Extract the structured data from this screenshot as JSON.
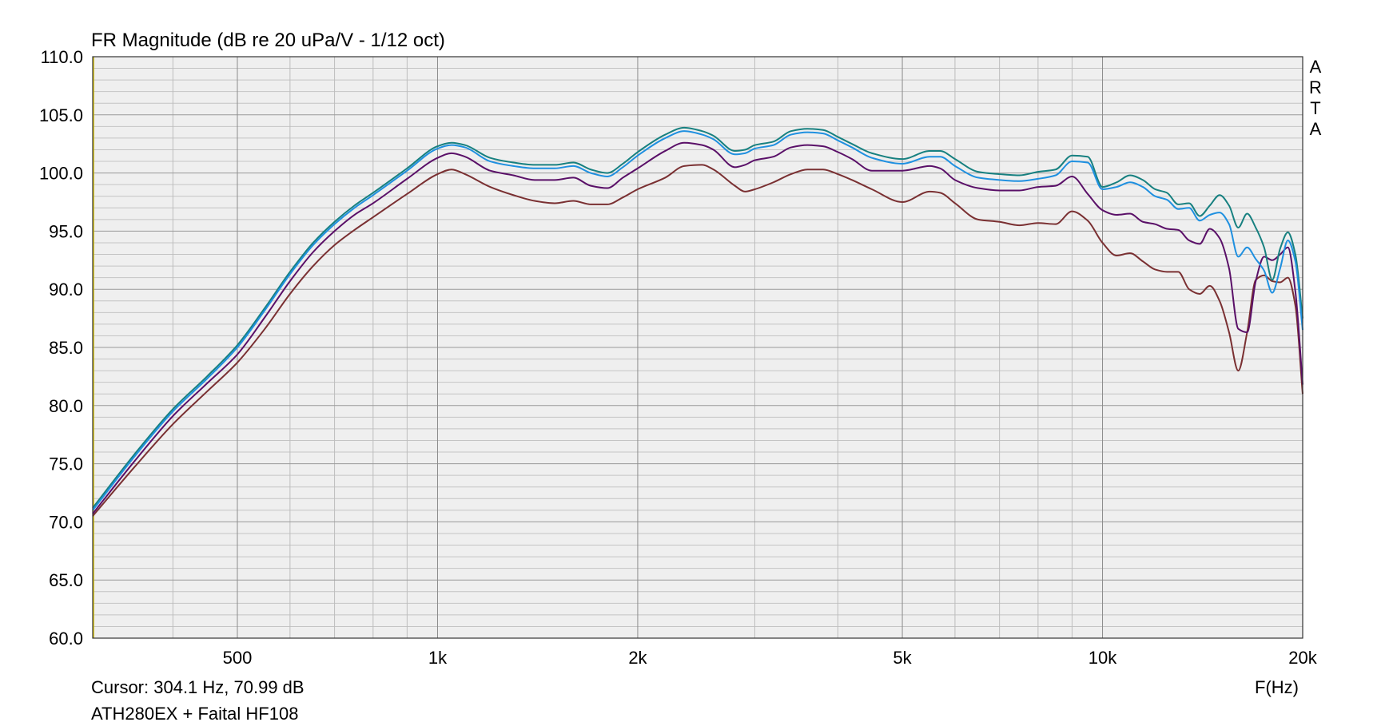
{
  "chart_data": {
    "type": "line",
    "title": "FR Magnitude (dB re 20 uPa/V - 1/12 oct)",
    "xlabel": "F(Hz)",
    "ylabel": "",
    "x_scale": "log",
    "xlim": [
      303,
      20000
    ],
    "ylim": [
      60,
      110
    ],
    "y_ticks": [
      60,
      65,
      70,
      75,
      80,
      85,
      90,
      95,
      100,
      105,
      110
    ],
    "y_tick_labels": [
      "60.0",
      "65.0",
      "70.0",
      "75.0",
      "80.0",
      "85.0",
      "90.0",
      "95.0",
      "100.0",
      "105.0",
      "110.0"
    ],
    "x_ticks": [
      500,
      1000,
      2000,
      5000,
      10000,
      20000
    ],
    "x_tick_labels": [
      "500",
      "1k",
      "2k",
      "5k",
      "10k",
      "20k"
    ],
    "grid": true,
    "watermark": "ARTA",
    "cursor_text": "Cursor: 304.1 Hz, 70.99 dB",
    "footer_note": "ATH280EX + Faital HF108",
    "cursor_marker_x": 304.1,
    "series": [
      {
        "color": "#178080",
        "x": [
          303,
          350,
          400,
          450,
          500,
          550,
          600,
          650,
          700,
          750,
          800,
          900,
          1000,
          1050,
          1100,
          1200,
          1300,
          1400,
          1500,
          1600,
          1700,
          1800,
          1900,
          2000,
          2200,
          2350,
          2500,
          2600,
          2800,
          2900,
          3000,
          3200,
          3400,
          3600,
          3800,
          4000,
          4200,
          4500,
          5000,
          5500,
          5700,
          6000,
          6500,
          7000,
          7500,
          8000,
          8500,
          9000,
          9500,
          10000,
          10500,
          11000,
          11500,
          12000,
          12500,
          13000,
          13500,
          14000,
          14500,
          15000,
          15500,
          16000,
          16500,
          17000,
          17500,
          18000,
          18500,
          19000,
          19500,
          20000
        ],
        "y": [
          71.2,
          75.8,
          79.7,
          82.5,
          85.2,
          88.4,
          91.5,
          94.0,
          95.8,
          97.2,
          98.3,
          100.4,
          102.3,
          102.6,
          102.4,
          101.3,
          100.9,
          100.7,
          100.7,
          100.9,
          100.3,
          100.0,
          100.8,
          101.8,
          103.3,
          103.9,
          103.6,
          103.2,
          101.9,
          102.0,
          102.4,
          102.7,
          103.6,
          103.8,
          103.7,
          103.1,
          102.5,
          101.7,
          101.2,
          101.9,
          101.9,
          101.2,
          100.1,
          99.9,
          99.8,
          100.1,
          100.3,
          101.5,
          101.4,
          98.8,
          99.2,
          99.8,
          99.4,
          98.6,
          98.3,
          97.3,
          97.4,
          96.3,
          97.2,
          98.1,
          97.2,
          95.3,
          96.5,
          95.3,
          93.6,
          90.8,
          93.5,
          94.9,
          93.0,
          87.5
        ]
      },
      {
        "color": "#1f90e0",
        "x": [
          303,
          350,
          400,
          450,
          500,
          550,
          600,
          650,
          700,
          750,
          800,
          900,
          1000,
          1050,
          1100,
          1200,
          1300,
          1400,
          1500,
          1600,
          1700,
          1800,
          1900,
          2000,
          2200,
          2350,
          2500,
          2600,
          2800,
          2900,
          3000,
          3200,
          3400,
          3600,
          3800,
          4000,
          4200,
          4500,
          5000,
          5500,
          5700,
          6000,
          6500,
          7000,
          7500,
          8000,
          8500,
          9000,
          9500,
          10000,
          10500,
          11000,
          11500,
          12000,
          12500,
          13000,
          13500,
          14000,
          14500,
          15000,
          15500,
          16000,
          16500,
          17000,
          17500,
          18000,
          18500,
          19000,
          19500,
          20000
        ],
        "y": [
          70.99,
          75.6,
          79.5,
          82.3,
          85.0,
          88.2,
          91.3,
          93.8,
          95.6,
          97.0,
          98.1,
          100.2,
          102.1,
          102.4,
          102.2,
          101.0,
          100.6,
          100.4,
          100.4,
          100.6,
          100.0,
          99.7,
          100.5,
          101.5,
          103.0,
          103.6,
          103.3,
          102.9,
          101.6,
          101.7,
          102.1,
          102.4,
          103.3,
          103.5,
          103.4,
          102.8,
          102.2,
          101.3,
          100.8,
          101.4,
          101.4,
          100.6,
          99.6,
          99.4,
          99.3,
          99.5,
          99.8,
          101.0,
          100.9,
          98.6,
          98.8,
          99.2,
          98.8,
          98.0,
          97.7,
          96.9,
          97.0,
          95.9,
          96.4,
          96.6,
          95.6,
          92.8,
          93.6,
          92.6,
          91.6,
          89.7,
          91.8,
          94.2,
          92.4,
          86.5
        ]
      },
      {
        "color": "#5a1068",
        "x": [
          303,
          350,
          400,
          450,
          500,
          550,
          600,
          650,
          700,
          750,
          800,
          900,
          1000,
          1050,
          1100,
          1200,
          1300,
          1400,
          1500,
          1600,
          1700,
          1800,
          1900,
          2000,
          2200,
          2350,
          2500,
          2600,
          2800,
          2900,
          3000,
          3200,
          3400,
          3600,
          3800,
          4000,
          4200,
          4500,
          5000,
          5500,
          5700,
          6000,
          6500,
          7000,
          7500,
          8000,
          8500,
          9000,
          9500,
          10000,
          10500,
          11000,
          11500,
          12000,
          12500,
          13000,
          13500,
          14000,
          14500,
          15000,
          15500,
          16000,
          16500,
          17000,
          17500,
          18000,
          18500,
          19000,
          19500,
          20000
        ],
        "y": [
          70.7,
          75.2,
          79.1,
          81.9,
          84.4,
          87.6,
          90.7,
          93.2,
          95.0,
          96.4,
          97.4,
          99.5,
          101.3,
          101.7,
          101.4,
          100.2,
          99.8,
          99.4,
          99.4,
          99.6,
          98.9,
          98.7,
          99.6,
          100.4,
          101.9,
          102.6,
          102.4,
          102.0,
          100.5,
          100.7,
          101.1,
          101.4,
          102.2,
          102.4,
          102.3,
          101.8,
          101.2,
          100.2,
          100.2,
          100.6,
          100.4,
          99.4,
          98.7,
          98.5,
          98.5,
          98.8,
          98.9,
          99.7,
          98.2,
          96.8,
          96.4,
          96.5,
          95.8,
          95.6,
          95.2,
          95.1,
          94.2,
          93.9,
          95.2,
          94.4,
          91.8,
          86.6,
          86.3,
          90.7,
          92.8,
          92.5,
          93.0,
          93.6,
          89.8,
          81.8
        ]
      },
      {
        "color": "#7a3032",
        "x": [
          303,
          350,
          400,
          450,
          500,
          550,
          600,
          650,
          700,
          750,
          800,
          900,
          1000,
          1050,
          1100,
          1200,
          1300,
          1400,
          1500,
          1600,
          1700,
          1800,
          1900,
          2000,
          2200,
          2350,
          2500,
          2600,
          2800,
          2900,
          3000,
          3200,
          3400,
          3600,
          3800,
          4000,
          4200,
          4500,
          5000,
          5500,
          5700,
          6000,
          6500,
          7000,
          7500,
          8000,
          8500,
          9000,
          9500,
          10000,
          10500,
          11000,
          11500,
          12000,
          12500,
          13000,
          13500,
          14000,
          14500,
          15000,
          15500,
          16000,
          16500,
          17000,
          17500,
          18000,
          18500,
          19000,
          19500,
          20000
        ],
        "y": [
          70.5,
          74.7,
          78.4,
          81.2,
          83.7,
          86.6,
          89.6,
          92.0,
          93.8,
          95.1,
          96.2,
          98.2,
          99.9,
          100.3,
          99.9,
          98.8,
          98.1,
          97.6,
          97.4,
          97.6,
          97.3,
          97.3,
          97.9,
          98.6,
          99.6,
          100.6,
          100.7,
          100.3,
          98.9,
          98.4,
          98.6,
          99.2,
          99.9,
          100.3,
          100.3,
          99.9,
          99.4,
          98.6,
          97.5,
          98.4,
          98.3,
          97.4,
          96.0,
          95.8,
          95.5,
          95.7,
          95.6,
          96.7,
          95.9,
          94.0,
          92.9,
          93.1,
          92.4,
          91.7,
          91.5,
          91.5,
          90.0,
          89.6,
          90.3,
          89.0,
          86.3,
          83.0,
          86.3,
          90.8,
          91.2,
          90.7,
          90.6,
          91.0,
          88.6,
          81.0
        ]
      }
    ]
  }
}
